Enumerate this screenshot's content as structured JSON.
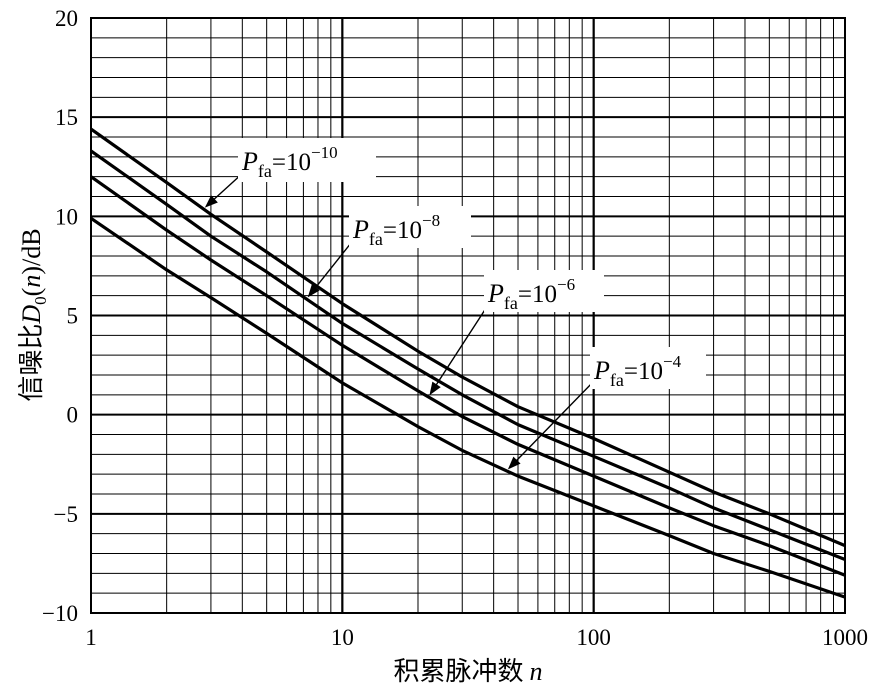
{
  "chart_data": {
    "type": "line",
    "title": "",
    "xlabel": "积累脉冲数",
    "xlabel_var": "n",
    "ylabel": "信噪比D0(n)/dB",
    "ylabel_parts": {
      "prefix": "信噪比",
      "D": "D",
      "sub": "0",
      "mid": "(",
      "n": "n",
      "suffix": ")/dB"
    },
    "xscale": "log",
    "xlim": [
      1,
      1000
    ],
    "ylim": [
      -10,
      20
    ],
    "grid": true,
    "x_ticks": [
      "1",
      "10",
      "100",
      "1000"
    ],
    "y_ticks": [
      "−10",
      "−5",
      "0",
      "5",
      "10",
      "15",
      "20"
    ],
    "x": [
      1,
      2,
      3,
      5,
      10,
      20,
      30,
      50,
      100,
      200,
      300,
      500,
      1000
    ],
    "series": [
      {
        "name": "P_fa=10^-10",
        "values": [
          14.4,
          11.7,
          10.1,
          8.2,
          5.6,
          3.2,
          1.9,
          0.4,
          -1.2,
          -2.9,
          -3.9,
          -5.0,
          -6.6
        ]
      },
      {
        "name": "P_fa=10^-8",
        "values": [
          13.3,
          10.6,
          9.0,
          7.2,
          4.6,
          2.3,
          1.0,
          -0.5,
          -2.1,
          -3.7,
          -4.7,
          -5.8,
          -7.3
        ]
      },
      {
        "name": "P_fa=10^-6",
        "values": [
          12.0,
          9.3,
          7.8,
          6.0,
          3.5,
          1.2,
          -0.1,
          -1.5,
          -3.1,
          -4.7,
          -5.6,
          -6.6,
          -8.1
        ]
      },
      {
        "name": "P_fa=10^-4",
        "values": [
          9.9,
          7.3,
          5.9,
          4.1,
          1.6,
          -0.6,
          -1.8,
          -3.1,
          -4.6,
          -6.1,
          -7.0,
          -7.9,
          -9.2
        ]
      }
    ],
    "annotations": [
      {
        "series": 0,
        "P": "P",
        "sub": "fa",
        "eq": "=10",
        "exp": "−10",
        "at_x": 2.8
      },
      {
        "series": 1,
        "P": "P",
        "sub": "fa",
        "eq": "=10",
        "exp": "−8",
        "at_x": 7.2
      },
      {
        "series": 2,
        "P": "P",
        "sub": "fa",
        "eq": "=10",
        "exp": "−6",
        "at_x": 22
      },
      {
        "series": 3,
        "P": "P",
        "sub": "fa",
        "eq": "=10",
        "exp": "−4",
        "at_x": 45
      }
    ]
  }
}
